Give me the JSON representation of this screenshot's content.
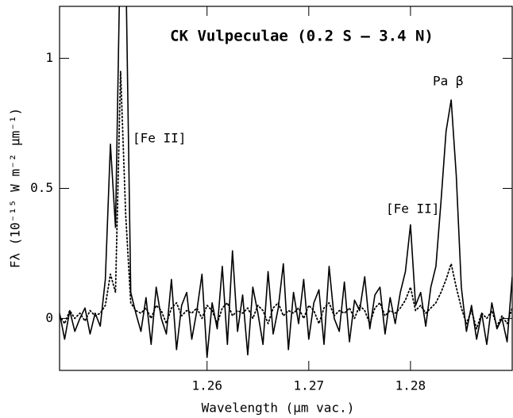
{
  "chart_data": {
    "type": "line",
    "title": "CK Vulpeculae (0.2 S – 3.4 N)",
    "x_label": "Wavelength (µm vac.)",
    "y_label": "Fλ (10⁻¹⁵ W m⁻² µm⁻¹)",
    "annotations": [
      "[Fe II]",
      "[Fe II]",
      "Pa β"
    ],
    "x": [
      1.2455,
      1.246,
      1.2465,
      1.247,
      1.2475,
      1.248,
      1.2485,
      1.249,
      1.2495,
      1.25,
      1.2505,
      1.251,
      1.2515,
      1.252,
      1.2525,
      1.253,
      1.2535,
      1.254,
      1.2545,
      1.255,
      1.2555,
      1.256,
      1.2565,
      1.257,
      1.2575,
      1.258,
      1.2585,
      1.259,
      1.2595,
      1.26,
      1.2605,
      1.261,
      1.2615,
      1.262,
      1.2625,
      1.263,
      1.2635,
      1.264,
      1.2645,
      1.265,
      1.2655,
      1.266,
      1.2665,
      1.267,
      1.2675,
      1.268,
      1.2685,
      1.269,
      1.2695,
      1.27,
      1.2705,
      1.271,
      1.2715,
      1.272,
      1.2725,
      1.273,
      1.2735,
      1.274,
      1.2745,
      1.275,
      1.2755,
      1.276,
      1.2765,
      1.277,
      1.2775,
      1.278,
      1.2785,
      1.279,
      1.2795,
      1.28,
      1.2805,
      1.281,
      1.2815,
      1.282,
      1.2825,
      1.283,
      1.2835,
      1.284,
      1.2845,
      1.285,
      1.2855,
      1.286,
      1.2865,
      1.287,
      1.2875,
      1.288,
      1.2885,
      1.289,
      1.2895,
      1.29
    ],
    "series": [
      {
        "color": "#000000",
        "style": "solid",
        "values": [
          0.02,
          -0.08,
          0.03,
          -0.05,
          0.0,
          0.04,
          -0.06,
          0.02,
          -0.03,
          0.15,
          0.67,
          0.35,
          1.5,
          1.4,
          0.1,
          0.02,
          -0.05,
          0.08,
          -0.1,
          0.12,
          0.0,
          -0.06,
          0.15,
          -0.12,
          0.05,
          0.1,
          -0.08,
          0.03,
          0.17,
          -0.15,
          0.06,
          -0.04,
          0.2,
          -0.1,
          0.26,
          -0.05,
          0.09,
          -0.14,
          0.12,
          0.02,
          -0.1,
          0.18,
          -0.06,
          0.04,
          0.21,
          -0.12,
          0.1,
          -0.02,
          0.15,
          -0.08,
          0.06,
          0.11,
          -0.1,
          0.2,
          0.0,
          -0.05,
          0.14,
          -0.09,
          0.07,
          0.03,
          0.16,
          -0.04,
          0.09,
          0.12,
          -0.06,
          0.08,
          -0.02,
          0.1,
          0.18,
          0.36,
          0.05,
          0.1,
          -0.03,
          0.12,
          0.2,
          0.45,
          0.72,
          0.84,
          0.55,
          0.12,
          -0.05,
          0.05,
          -0.08,
          0.02,
          -0.1,
          0.06,
          -0.04,
          0.0,
          -0.09,
          0.16
        ]
      },
      {
        "color": "#000000",
        "style": "dotted",
        "values": [
          0.01,
          -0.02,
          0.03,
          0.0,
          0.02,
          -0.01,
          0.03,
          0.01,
          0.02,
          0.05,
          0.17,
          0.1,
          0.95,
          0.4,
          0.06,
          0.03,
          0.02,
          0.04,
          0.0,
          0.05,
          0.03,
          -0.02,
          0.04,
          0.06,
          0.01,
          0.03,
          0.02,
          0.04,
          0.0,
          0.05,
          0.03,
          -0.02,
          0.04,
          0.06,
          0.01,
          0.03,
          0.02,
          0.04,
          0.0,
          0.05,
          0.03,
          -0.02,
          0.04,
          0.06,
          0.01,
          0.03,
          0.02,
          0.04,
          0.0,
          0.05,
          0.03,
          -0.02,
          0.04,
          0.06,
          0.01,
          0.03,
          0.02,
          0.04,
          0.0,
          0.05,
          0.03,
          -0.02,
          0.04,
          0.06,
          0.01,
          0.03,
          0.02,
          0.04,
          0.07,
          0.12,
          0.03,
          0.05,
          0.02,
          0.04,
          0.06,
          0.1,
          0.15,
          0.21,
          0.12,
          0.04,
          -0.02,
          0.03,
          -0.04,
          0.02,
          0.0,
          0.03,
          -0.03,
          0.01,
          -0.02,
          0.04
        ]
      }
    ],
    "xlim": [
      1.2455,
      1.29
    ],
    "xticks": [
      1.26,
      1.27,
      1.28
    ],
    "ylim": [
      -0.2,
      1.2
    ],
    "yticks": [
      0,
      0.5,
      1
    ],
    "grid": false
  }
}
